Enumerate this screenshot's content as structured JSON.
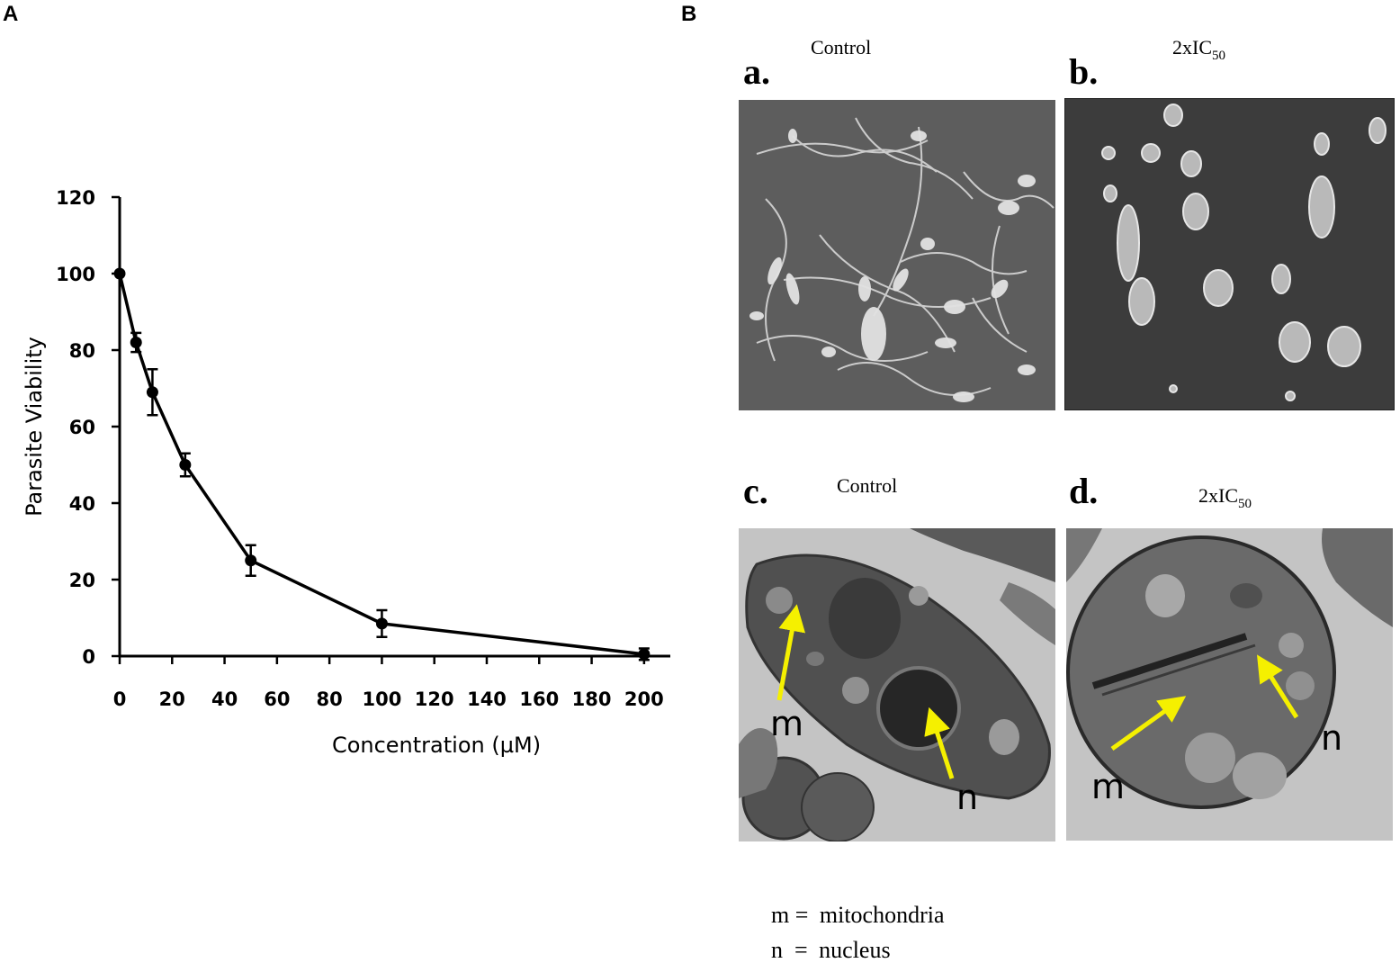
{
  "panels": {
    "a_letter": "A",
    "b_letter": "B"
  },
  "chart_data": {
    "type": "line",
    "xlabel": "Concentration (µM)",
    "ylabel": "Parasite  Viability",
    "xlim": [
      0,
      210
    ],
    "ylim": [
      0,
      120
    ],
    "xticks": [
      0,
      20,
      40,
      60,
      80,
      100,
      120,
      140,
      160,
      180,
      200
    ],
    "yticks": [
      0,
      20,
      40,
      60,
      80,
      100,
      120
    ],
    "grid": false,
    "series": [
      {
        "x": [
          0,
          6.25,
          12.5,
          25,
          50,
          100,
          200
        ],
        "y": [
          100,
          82,
          69,
          50,
          25,
          8.5,
          0.5
        ],
        "err": [
          0,
          2.5,
          6,
          3,
          4,
          3.5,
          1.5
        ]
      }
    ]
  },
  "micrographs": {
    "a": {
      "letter": "a.",
      "condition": "Control",
      "type": "SEM"
    },
    "b": {
      "letter": "b.",
      "condition_main": "2xIC",
      "condition_sub": "50",
      "type": "SEM"
    },
    "c": {
      "letter": "c.",
      "condition": "Control",
      "type": "TEM",
      "arrow_labels": [
        "m",
        "n"
      ]
    },
    "d": {
      "letter": "d.",
      "condition_main": "2xIC",
      "condition_sub": "50",
      "type": "TEM",
      "arrow_labels": [
        "m",
        "n"
      ]
    }
  },
  "legend": {
    "m_key": "m =",
    "m_value": "mitochondria",
    "n_key": "n  =",
    "n_value": "nucleus"
  },
  "colors": {
    "arrow": "#f5f000",
    "line": "#000000",
    "sem_bg": "#5a5a5a",
    "tem_bg": "#bdbdbd"
  }
}
